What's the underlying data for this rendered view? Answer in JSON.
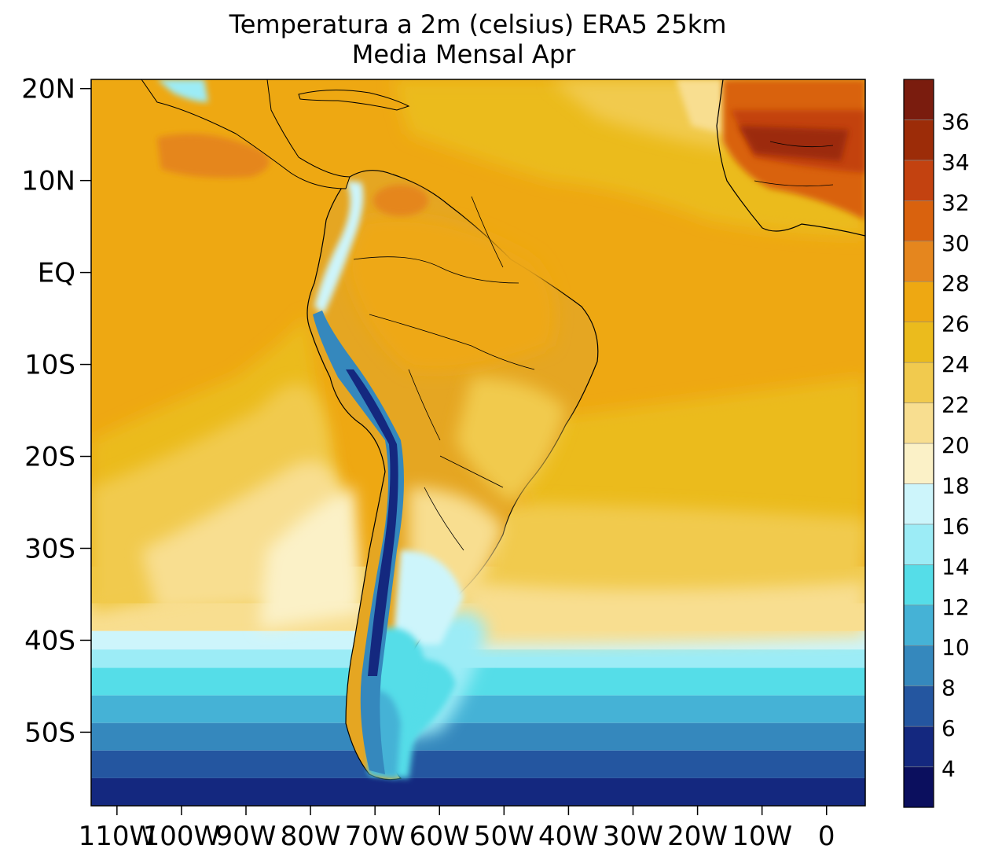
{
  "title": {
    "line1": "Temperatura a 2m (celsius) ERA5  25km",
    "line2": "Media Mensal Apr"
  },
  "chart_data": {
    "type": "filled-contour-map",
    "variable": "2m temperature",
    "units": "celsius",
    "dataset": "ERA5",
    "resolution": "25km",
    "period": "Apr (monthly mean)",
    "domain": {
      "lon": [
        -114,
        6
      ],
      "lat": [
        -58,
        21
      ]
    },
    "y_ticks": [
      {
        "lat": 20,
        "label": "20N"
      },
      {
        "lat": 10,
        "label": "10N"
      },
      {
        "lat": 0,
        "label": "EQ"
      },
      {
        "lat": -10,
        "label": "10S"
      },
      {
        "lat": -20,
        "label": "20S"
      },
      {
        "lat": -30,
        "label": "30S"
      },
      {
        "lat": -40,
        "label": "40S"
      },
      {
        "lat": -50,
        "label": "50S"
      }
    ],
    "x_ticks": [
      {
        "lon": -110,
        "label": "110W"
      },
      {
        "lon": -100,
        "label": "100W"
      },
      {
        "lon": -90,
        "label": "90W"
      },
      {
        "lon": -80,
        "label": "80W"
      },
      {
        "lon": -70,
        "label": "70W"
      },
      {
        "lon": -60,
        "label": "60W"
      },
      {
        "lon": -50,
        "label": "50W"
      },
      {
        "lon": -40,
        "label": "40W"
      },
      {
        "lon": -30,
        "label": "30W"
      },
      {
        "lon": -20,
        "label": "20W"
      },
      {
        "lon": -10,
        "label": "10W"
      },
      {
        "lon": 0,
        "label": "0"
      }
    ],
    "levels": [
      4,
      6,
      8,
      10,
      12,
      14,
      16,
      18,
      20,
      22,
      24,
      26,
      28,
      30,
      32,
      34,
      36
    ],
    "colorbar": {
      "colors": [
        "#0b0f5e",
        "#14287f",
        "#2456a0",
        "#3588bd",
        "#45b2d6",
        "#55dde8",
        "#9cecf6",
        "#cdf5fb",
        "#fbf1c7",
        "#f8de90",
        "#f1ca4e",
        "#ebbb1d",
        "#eea812",
        "#e5861e",
        "#d9620e",
        "#c34210",
        "#9c2c08",
        "#7a1c0e"
      ],
      "labels": [
        "4",
        "6",
        "8",
        "10",
        "12",
        "14",
        "16",
        "18",
        "20",
        "22",
        "24",
        "26",
        "28",
        "30",
        "32",
        "34",
        "36"
      ]
    },
    "bands": [
      {
        "lat_top": 21,
        "lat_bot": -32,
        "color": "#eea812"
      },
      {
        "lat_top": -32,
        "lat_bot": -36,
        "color": "#f1ca4e"
      },
      {
        "lat_top": -36,
        "lat_bot": -39,
        "color": "#f8de90"
      },
      {
        "lat_top": -39,
        "lat_bot": -41,
        "color": "#cdf5fb"
      },
      {
        "lat_top": -41,
        "lat_bot": -43,
        "color": "#9cecf6"
      },
      {
        "lat_top": -43,
        "lat_bot": -46,
        "color": "#55dde8"
      },
      {
        "lat_top": -46,
        "lat_bot": -49,
        "color": "#45b2d6"
      },
      {
        "lat_top": -49,
        "lat_bot": -52,
        "color": "#3588bd"
      },
      {
        "lat_top": -52,
        "lat_bot": -55,
        "color": "#2456a0"
      },
      {
        "lat_top": -55,
        "lat_bot": -58,
        "color": "#14287f"
      }
    ]
  }
}
